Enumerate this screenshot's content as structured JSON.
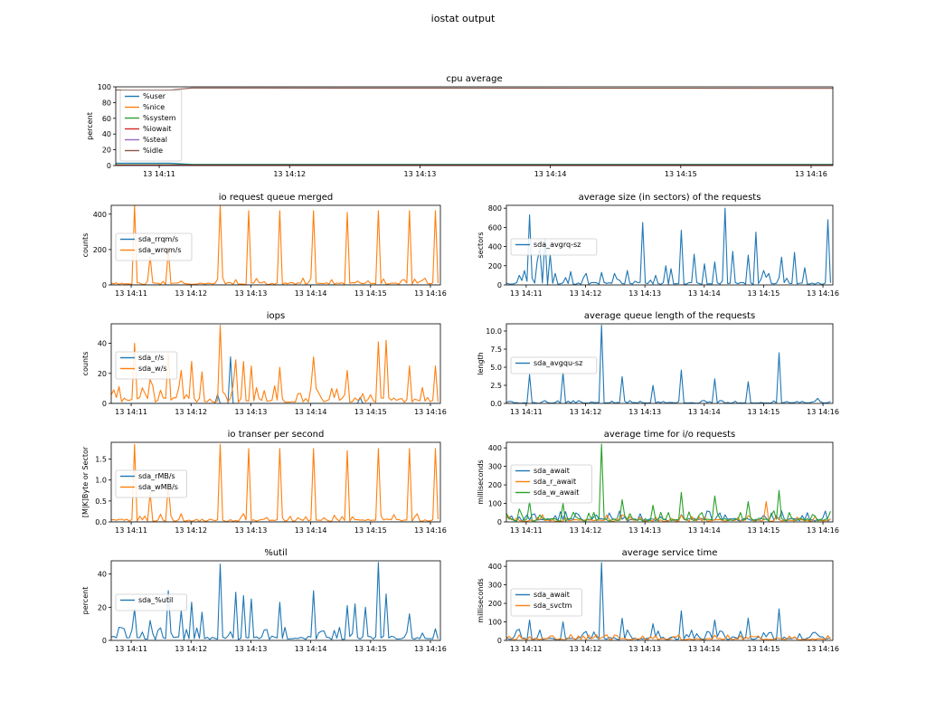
{
  "figure_title": "iostat output",
  "colors": {
    "c0": "#1f77b4",
    "c1": "#ff7f0e",
    "c2": "#2ca02c",
    "c3": "#d62728",
    "c4": "#9467bd",
    "c5": "#8c564b"
  },
  "chart_data": [
    {
      "id": "cpu",
      "type": "line",
      "title": "cpu average",
      "ylabel": "percent",
      "x_ticks": [
        "13 14:11",
        "13 14:12",
        "13 14:13",
        "13 14:14",
        "13 14:15",
        "13 14:16"
      ],
      "x_range": [
        "14:10:40",
        "14:16:10"
      ],
      "ylim": [
        0,
        100
      ],
      "y_ticks": [
        0,
        20,
        40,
        60,
        80,
        100
      ],
      "legend_position": "upper-left",
      "series": [
        {
          "name": "%user",
          "color": "#1f77b4",
          "points": [
            [
              "14:10:40",
              3
            ],
            [
              "14:11:05",
              3
            ],
            [
              "14:11:15",
              1.5
            ],
            [
              "14:16:10",
              1.5
            ]
          ]
        },
        {
          "name": "%nice",
          "color": "#ff7f0e",
          "points": [
            [
              "14:10:40",
              0
            ],
            [
              "14:16:10",
              0
            ]
          ]
        },
        {
          "name": "%system",
          "color": "#2ca02c",
          "points": [
            [
              "14:10:40",
              1
            ],
            [
              "14:16:10",
              1
            ]
          ]
        },
        {
          "name": "%iowait",
          "color": "#d62728",
          "points": [
            [
              "14:10:40",
              0.5
            ],
            [
              "14:16:10",
              0.5
            ]
          ]
        },
        {
          "name": "%steal",
          "color": "#9467bd",
          "points": [
            [
              "14:10:40",
              0
            ],
            [
              "14:16:10",
              0
            ]
          ]
        },
        {
          "name": "%idle",
          "color": "#8c564b",
          "points": [
            [
              "14:10:40",
              96
            ],
            [
              "14:11:05",
              96
            ],
            [
              "14:11:15",
              98.5
            ],
            [
              "14:16:10",
              98
            ]
          ]
        }
      ]
    },
    {
      "id": "merged",
      "type": "line",
      "title": "io request queue merged",
      "ylabel": "counts",
      "x_ticks": [
        "13 14:11",
        "13 14:12",
        "13 14:13",
        "13 14:14",
        "13 14:15",
        "13 14:16"
      ],
      "x_range": [
        "14:10:40",
        "14:16:10"
      ],
      "ylim": [
        0,
        450
      ],
      "y_ticks": [
        0,
        200,
        400
      ],
      "legend_position": "center-left",
      "series": [
        {
          "name": "sda_rrqm/s",
          "color": "#1f77b4",
          "baseline": 0,
          "spikes": []
        },
        {
          "name": "sda_wrqm/s",
          "color": "#ff7f0e",
          "baseline": 10,
          "spikes": [
            [
              "14:11:03",
              450
            ],
            [
              "14:11:20",
              160
            ],
            [
              "14:11:36",
              200
            ],
            [
              "14:12:30",
              450
            ],
            [
              "14:12:58",
              420
            ],
            [
              "14:13:30",
              420
            ],
            [
              "14:14:04",
              420
            ],
            [
              "14:14:37",
              410
            ],
            [
              "14:15:08",
              420
            ],
            [
              "14:15:39",
              420
            ],
            [
              "14:16:05",
              420
            ]
          ]
        }
      ]
    },
    {
      "id": "avgrq",
      "type": "line",
      "title": "average size (in sectors) of the requests",
      "ylabel": "sectors",
      "x_ticks": [
        "13 14:11",
        "13 14:12",
        "13 14:13",
        "13 14:14",
        "13 14:15",
        "13 14:16"
      ],
      "x_range": [
        "14:10:40",
        "14:16:10"
      ],
      "ylim": [
        0,
        830
      ],
      "y_ticks": [
        0,
        200,
        400,
        600,
        800
      ],
      "legend_position": "center-left",
      "series": [
        {
          "name": "sda_avgrq-sz",
          "color": "#1f77b4",
          "baseline": 20,
          "spikes": [
            [
              "14:10:52",
              100
            ],
            [
              "14:10:58",
              150
            ],
            [
              "14:11:03",
              730
            ],
            [
              "14:11:10",
              250
            ],
            [
              "14:11:14",
              380
            ],
            [
              "14:11:18",
              480
            ],
            [
              "14:11:23",
              320
            ],
            [
              "14:11:30",
              120
            ],
            [
              "14:11:45",
              140
            ],
            [
              "14:12:00",
              120
            ],
            [
              "14:12:15",
              130
            ],
            [
              "14:12:30",
              120
            ],
            [
              "14:12:42",
              150
            ],
            [
              "14:12:58",
              650
            ],
            [
              "14:13:10",
              100
            ],
            [
              "14:13:20",
              200
            ],
            [
              "14:13:27",
              170
            ],
            [
              "14:13:37",
              570
            ],
            [
              "14:13:50",
              320
            ],
            [
              "14:14:00",
              220
            ],
            [
              "14:14:10",
              240
            ],
            [
              "14:14:22",
              800
            ],
            [
              "14:14:30",
              350
            ],
            [
              "14:14:45",
              310
            ],
            [
              "14:14:52",
              550
            ],
            [
              "14:15:00",
              150
            ],
            [
              "14:15:06",
              120
            ],
            [
              "14:15:18",
              290
            ],
            [
              "14:15:30",
              340
            ],
            [
              "14:15:42",
              180
            ],
            [
              "14:16:05",
              680
            ]
          ]
        }
      ]
    },
    {
      "id": "iops",
      "type": "line",
      "title": "iops",
      "ylabel": "counts",
      "x_ticks": [
        "13 14:11",
        "13 14:12",
        "13 14:13",
        "13 14:14",
        "13 14:15",
        "13 14:16"
      ],
      "x_range": [
        "14:10:40",
        "14:16:10"
      ],
      "ylim": [
        0,
        53
      ],
      "y_ticks": [
        0,
        20,
        40
      ],
      "legend_position": "center-left",
      "series": [
        {
          "name": "sda_r/s",
          "color": "#1f77b4",
          "baseline": 0,
          "spikes": [
            [
              "14:12:40",
              31
            ],
            [
              "14:12:27",
              6
            ],
            [
              "14:14:50",
              4
            ]
          ]
        },
        {
          "name": "sda_w/s",
          "color": "#ff7f0e",
          "baseline": 3,
          "spikes": [
            [
              "14:11:03",
              40
            ],
            [
              "14:11:20",
              16
            ],
            [
              "14:11:36",
              33
            ],
            [
              "14:11:50",
              22
            ],
            [
              "14:12:00",
              28
            ],
            [
              "14:12:12",
              21
            ],
            [
              "14:12:28",
              52
            ],
            [
              "14:12:45",
              29
            ],
            [
              "14:12:53",
              28
            ],
            [
              "14:13:00",
              25
            ],
            [
              "14:13:29",
              24
            ],
            [
              "14:14:04",
              31
            ],
            [
              "14:14:37",
              22
            ],
            [
              "14:15:08",
              41
            ],
            [
              "14:15:15",
              42
            ],
            [
              "14:15:39",
              25
            ],
            [
              "14:16:05",
              25
            ]
          ]
        }
      ]
    },
    {
      "id": "avgqu",
      "type": "line",
      "title": "average queue length of the requests",
      "ylabel": "length",
      "x_ticks": [
        "13 14:11",
        "13 14:12",
        "13 14:13",
        "13 14:14",
        "13 14:15",
        "13 14:16"
      ],
      "x_range": [
        "14:10:40",
        "14:16:10"
      ],
      "ylim": [
        0,
        11
      ],
      "y_ticks": [
        0.0,
        2.5,
        5.0,
        7.5,
        10.0
      ],
      "legend_position": "center-left",
      "series": [
        {
          "name": "sda_avgqu-sz",
          "color": "#1f77b4",
          "baseline": 0.1,
          "spikes": [
            [
              "14:11:03",
              4
            ],
            [
              "14:11:36",
              4.3
            ],
            [
              "14:12:15",
              10.8
            ],
            [
              "14:12:38",
              3.7
            ],
            [
              "14:13:08",
              2.5
            ],
            [
              "14:13:37",
              4.6
            ],
            [
              "14:14:10",
              3.4
            ],
            [
              "14:14:44",
              3.0
            ],
            [
              "14:15:15",
              7.0
            ],
            [
              "14:15:54",
              0.7
            ]
          ]
        }
      ]
    },
    {
      "id": "mb",
      "type": "line",
      "title": "io transer per second",
      "ylabel": "[M|K]Byte or Sector",
      "x_ticks": [
        "13 14:11",
        "13 14:12",
        "13 14:13",
        "13 14:14",
        "13 14:15",
        "13 14:16"
      ],
      "x_range": [
        "14:10:40",
        "14:16:10"
      ],
      "ylim": [
        0,
        1.9
      ],
      "y_ticks": [
        0.0,
        0.5,
        1.0,
        1.5
      ],
      "legend_position": "center-left",
      "series": [
        {
          "name": "sda_rMB/s",
          "color": "#1f77b4",
          "baseline": 0,
          "spikes": []
        },
        {
          "name": "sda_wMB/s",
          "color": "#ff7f0e",
          "baseline": 0.05,
          "spikes": [
            [
              "14:11:03",
              1.85
            ],
            [
              "14:11:20",
              0.7
            ],
            [
              "14:11:36",
              0.9
            ],
            [
              "14:12:30",
              1.85
            ],
            [
              "14:12:58",
              1.75
            ],
            [
              "14:13:30",
              1.75
            ],
            [
              "14:14:04",
              1.75
            ],
            [
              "14:14:37",
              1.7
            ],
            [
              "14:15:08",
              1.75
            ],
            [
              "14:15:39",
              1.75
            ],
            [
              "14:16:05",
              1.75
            ]
          ]
        }
      ]
    },
    {
      "id": "await",
      "type": "line",
      "title": "average time for i/o requests",
      "ylabel": "milliseconds",
      "x_ticks": [
        "13 14:11",
        "13 14:12",
        "13 14:13",
        "13 14:14",
        "13 14:15",
        "13 14:16"
      ],
      "x_range": [
        "14:10:40",
        "14:16:10"
      ],
      "ylim": [
        0,
        430
      ],
      "y_ticks": [
        0,
        100,
        200,
        300,
        400
      ],
      "legend_position": "center-left",
      "series": [
        {
          "name": "sda_await",
          "color": "#1f77b4",
          "baseline": 15,
          "spikes": []
        },
        {
          "name": "sda_r_await",
          "color": "#ff7f0e",
          "baseline": 10,
          "spikes": [
            [
              "14:15:02",
              110
            ]
          ]
        },
        {
          "name": "sda_w_await",
          "color": "#2ca02c",
          "baseline": 15,
          "spikes": [
            [
              "14:10:52",
              70
            ],
            [
              "14:11:03",
              110
            ],
            [
              "14:11:36",
              100
            ],
            [
              "14:12:15",
              420
            ],
            [
              "14:12:38",
              120
            ],
            [
              "14:13:08",
              90
            ],
            [
              "14:13:37",
              160
            ],
            [
              "14:14:10",
              140
            ],
            [
              "14:14:44",
              110
            ],
            [
              "14:15:15",
              170
            ],
            [
              "14:15:50",
              40
            ]
          ]
        }
      ]
    },
    {
      "id": "util",
      "type": "line",
      "title": "%util",
      "ylabel": "percent",
      "x_ticks": [
        "13 14:11",
        "13 14:12",
        "13 14:13",
        "13 14:14",
        "13 14:15",
        "13 14:16"
      ],
      "x_range": [
        "14:10:40",
        "14:16:10"
      ],
      "ylim": [
        0,
        48
      ],
      "y_ticks": [
        0,
        20,
        40
      ],
      "legend_position": "center-left",
      "series": [
        {
          "name": "sda_%util",
          "color": "#1f77b4",
          "baseline": 2,
          "spikes": [
            [
              "14:10:52",
              7
            ],
            [
              "14:11:03",
              19
            ],
            [
              "14:11:20",
              12
            ],
            [
              "14:11:36",
              30
            ],
            [
              "14:11:50",
              18
            ],
            [
              "14:12:00",
              23
            ],
            [
              "14:12:12",
              17
            ],
            [
              "14:12:28",
              46
            ],
            [
              "14:12:45",
              29
            ],
            [
              "14:12:53",
              27
            ],
            [
              "14:13:00",
              25
            ],
            [
              "14:13:29",
              23
            ],
            [
              "14:14:04",
              30
            ],
            [
              "14:14:37",
              21
            ],
            [
              "14:14:45",
              22
            ],
            [
              "14:14:55",
              20
            ],
            [
              "14:15:08",
              47
            ],
            [
              "14:15:15",
              28
            ],
            [
              "14:15:39",
              16
            ],
            [
              "14:16:05",
              7
            ]
          ]
        }
      ]
    },
    {
      "id": "svctm",
      "type": "line",
      "title": "average service time",
      "ylabel": "milliseconds",
      "x_ticks": [
        "13 14:11",
        "13 14:12",
        "13 14:13",
        "13 14:14",
        "13 14:15",
        "13 14:16"
      ],
      "x_range": [
        "14:10:40",
        "14:16:10"
      ],
      "ylim": [
        0,
        430
      ],
      "y_ticks": [
        0,
        100,
        200,
        300,
        400
      ],
      "legend_position": "center-left",
      "series": [
        {
          "name": "sda_await",
          "color": "#1f77b4",
          "baseline": 15,
          "spikes": [
            [
              "14:10:52",
              60
            ],
            [
              "14:11:03",
              110
            ],
            [
              "14:11:36",
              100
            ],
            [
              "14:12:15",
              420
            ],
            [
              "14:12:38",
              120
            ],
            [
              "14:13:08",
              90
            ],
            [
              "14:13:37",
              160
            ],
            [
              "14:14:10",
              110
            ],
            [
              "14:14:44",
              120
            ],
            [
              "14:15:15",
              170
            ],
            [
              "14:15:50",
              40
            ]
          ]
        },
        {
          "name": "sda_svctm",
          "color": "#ff7f0e",
          "baseline": 8,
          "spikes": [
            [
              "14:10:52",
              30
            ],
            [
              "14:11:03",
              20
            ],
            [
              "14:12:15",
              15
            ]
          ]
        }
      ]
    }
  ]
}
